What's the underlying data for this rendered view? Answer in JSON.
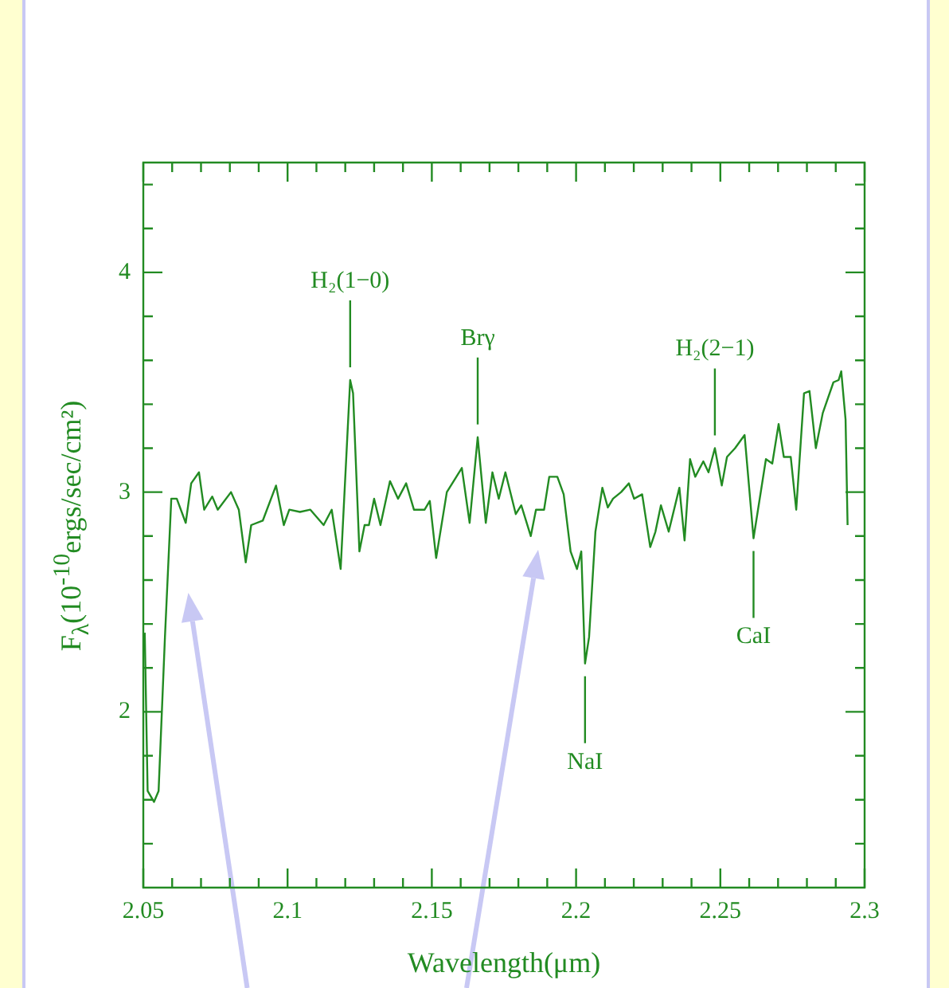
{
  "chart_data": {
    "type": "line",
    "xlabel": "Wavelength(μm)",
    "ylabel": "F$_{λ}$(10$^{-10}$ergs/sec/cm²)",
    "color": "#228b22",
    "x": [
      2.0505,
      2.0515,
      2.0537,
      2.0553,
      2.0575,
      2.0597,
      2.0616,
      2.0647,
      2.0666,
      2.0693,
      2.0711,
      2.0739,
      2.0758,
      2.0804,
      2.0831,
      2.0855,
      2.0874,
      2.0914,
      2.096,
      2.0987,
      2.1006,
      2.1043,
      2.1079,
      2.1125,
      2.1153,
      2.1184,
      2.1217,
      2.1227,
      2.1249,
      2.1267,
      2.1282,
      2.13,
      2.1322,
      2.1355,
      2.1383,
      2.1411,
      2.1438,
      2.1475,
      2.1493,
      2.1515,
      2.1552,
      2.1604,
      2.1631,
      2.1659,
      2.1687,
      2.171,
      2.1732,
      2.1755,
      2.1791,
      2.181,
      2.1843,
      2.1861,
      2.1889,
      2.1907,
      2.1935,
      2.1957,
      2.1981,
      2.2003,
      2.2018,
      2.2031,
      2.2045,
      2.2067,
      2.2091,
      2.211,
      2.2128,
      2.2156,
      2.2183,
      2.2201,
      2.2229,
      2.2257,
      2.2275,
      2.2294,
      2.2321,
      2.2358,
      2.2376,
      2.2395,
      2.2413,
      2.2441,
      2.2459,
      2.2481,
      2.2505,
      2.2523,
      2.2551,
      2.2584,
      2.2615,
      2.2658,
      2.268,
      2.2702,
      2.272,
      2.2744,
      2.2763,
      2.279,
      2.2809,
      2.2831,
      2.2855,
      2.2892,
      2.291,
      2.2919,
      2.2934,
      2.2941
    ],
    "values": [
      2.36,
      1.64,
      1.59,
      1.64,
      2.34,
      2.97,
      2.97,
      2.86,
      3.04,
      3.09,
      2.92,
      2.98,
      2.92,
      3.0,
      2.92,
      2.68,
      2.85,
      2.87,
      3.03,
      2.85,
      2.92,
      2.91,
      2.92,
      2.85,
      2.92,
      2.65,
      3.51,
      3.45,
      2.73,
      2.85,
      2.85,
      2.97,
      2.85,
      3.05,
      2.97,
      3.04,
      2.92,
      2.92,
      2.96,
      2.7,
      3.0,
      3.11,
      2.86,
      3.25,
      2.86,
      3.09,
      2.97,
      3.09,
      2.9,
      2.94,
      2.8,
      2.92,
      2.92,
      3.07,
      3.07,
      2.99,
      2.73,
      2.65,
      2.73,
      2.22,
      2.34,
      2.82,
      3.02,
      2.93,
      2.97,
      3.0,
      3.04,
      2.97,
      2.99,
      2.75,
      2.82,
      2.94,
      2.82,
      3.02,
      2.78,
      3.15,
      3.07,
      3.14,
      3.09,
      3.2,
      3.03,
      3.16,
      3.2,
      3.26,
      2.79,
      3.15,
      3.13,
      3.31,
      3.16,
      3.16,
      2.92,
      3.45,
      3.46,
      3.2,
      3.36,
      3.5,
      3.51,
      3.55,
      3.33,
      2.85
    ],
    "xlim": [
      2.05,
      2.3
    ],
    "xticks": [
      2.05,
      {
        "value": 2.06,
        "label": null
      },
      {
        "value": 2.07,
        "label": null
      },
      {
        "value": 2.08,
        "label": null
      },
      {
        "value": 2.09,
        "label": null
      },
      2.1,
      {
        "value": 2.11,
        "label": null
      },
      {
        "value": 2.12,
        "label": null
      },
      {
        "value": 2.13,
        "label": null
      },
      {
        "value": 2.14,
        "label": null
      },
      2.15,
      {
        "value": 2.16,
        "label": null
      },
      {
        "value": 2.17,
        "label": null
      },
      {
        "value": 2.18,
        "label": null
      },
      {
        "value": 2.19,
        "label": null
      },
      2.2,
      {
        "value": 2.21,
        "label": null
      },
      {
        "value": 2.22,
        "label": null
      },
      {
        "value": 2.23,
        "label": null
      },
      {
        "value": 2.24,
        "label": null
      },
      2.25,
      {
        "value": 2.26,
        "label": null
      },
      {
        "value": 2.27,
        "label": null
      },
      {
        "value": 2.28,
        "label": null
      },
      {
        "value": 2.29,
        "label": null
      },
      2.3
    ],
    "ylim": [
      1.2,
      4.5
    ],
    "yticks": [
      {
        "value": 1.4,
        "label": null
      },
      {
        "value": 1.6,
        "label": null
      },
      {
        "value": 1.8,
        "label": null
      },
      2,
      {
        "value": 2.2,
        "label": null
      },
      {
        "value": 2.4,
        "label": null
      },
      {
        "value": 2.6,
        "label": null
      },
      {
        "value": 2.8,
        "label": null
      },
      3,
      {
        "value": 3.2,
        "label": null
      },
      {
        "value": 3.4,
        "label": null
      },
      {
        "value": 3.6,
        "label": null
      },
      {
        "value": 3.8,
        "label": null
      },
      4,
      {
        "value": 4.2,
        "label": null
      },
      {
        "value": 4.4,
        "label": null
      }
    ],
    "annotations": [
      {
        "text": "H₂(1−0)",
        "x": 2.1217,
        "y": 3.51
      },
      {
        "text": "Brγ",
        "x": 2.1659,
        "y": 3.25
      },
      {
        "text": "NaI",
        "x": 2.2031,
        "y": 2.22
      },
      {
        "text": "H₂(2−1)",
        "x": 2.2481,
        "y": 3.2
      },
      {
        "text": "CaI",
        "x": 2.2615,
        "y": 2.79
      }
    ],
    "marker": "none",
    "line_style": "solid",
    "legend": false
  }
}
